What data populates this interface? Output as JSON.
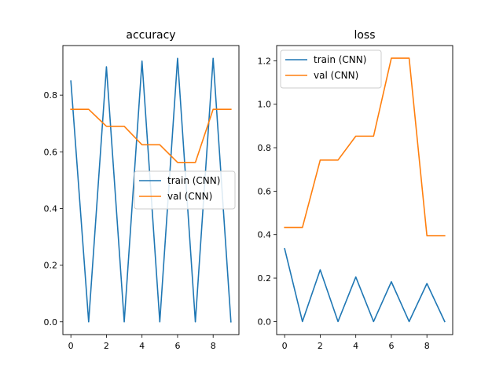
{
  "chart_data": [
    {
      "type": "line",
      "title": "accuracy",
      "xlabel": "",
      "ylabel": "",
      "x": [
        0,
        1,
        2,
        3,
        4,
        5,
        6,
        7,
        8,
        9
      ],
      "xlim": [
        -0.45,
        9.45
      ],
      "ylim": [
        -0.045,
        0.975
      ],
      "x_ticks": [
        0,
        2,
        4,
        6,
        8
      ],
      "x_tick_labels": [
        "0",
        "2",
        "4",
        "6",
        "8"
      ],
      "y_ticks": [
        0.0,
        0.2,
        0.4,
        0.6,
        0.8
      ],
      "y_tick_labels": [
        "0.0",
        "0.2",
        "0.4",
        "0.6",
        "0.8"
      ],
      "legend_position": "center-right",
      "series": [
        {
          "name": "train (CNN)",
          "color": "#1f77b4",
          "values": [
            0.85,
            0.0,
            0.9,
            0.0,
            0.92,
            0.0,
            0.93,
            0.0,
            0.93,
            0.0
          ]
        },
        {
          "name": "val (CNN)",
          "color": "#ff7f0e",
          "values": [
            0.75,
            0.75,
            0.69,
            0.69,
            0.625,
            0.625,
            0.5625,
            0.5625,
            0.75,
            0.75
          ]
        }
      ]
    },
    {
      "type": "line",
      "title": "loss",
      "xlabel": "",
      "ylabel": "",
      "x": [
        0,
        1,
        2,
        3,
        4,
        5,
        6,
        7,
        8,
        9
      ],
      "xlim": [
        -0.45,
        9.45
      ],
      "ylim": [
        -0.06,
        1.27
      ],
      "x_ticks": [
        0,
        2,
        4,
        6,
        8
      ],
      "x_tick_labels": [
        "0",
        "2",
        "4",
        "6",
        "8"
      ],
      "y_ticks": [
        0.0,
        0.2,
        0.4,
        0.6,
        0.8,
        1.0,
        1.2
      ],
      "y_tick_labels": [
        "0.0",
        "0.2",
        "0.4",
        "0.6",
        "0.8",
        "1.0",
        "1.2"
      ],
      "legend_position": "upper-left",
      "series": [
        {
          "name": "train (CNN)",
          "color": "#1f77b4",
          "values": [
            0.335,
            0.0,
            0.238,
            0.0,
            0.205,
            0.0,
            0.183,
            0.0,
            0.175,
            0.0
          ]
        },
        {
          "name": "val (CNN)",
          "color": "#ff7f0e",
          "values": [
            0.433,
            0.433,
            0.743,
            0.743,
            0.853,
            0.853,
            1.212,
            1.212,
            0.395,
            0.395
          ]
        }
      ]
    }
  ]
}
